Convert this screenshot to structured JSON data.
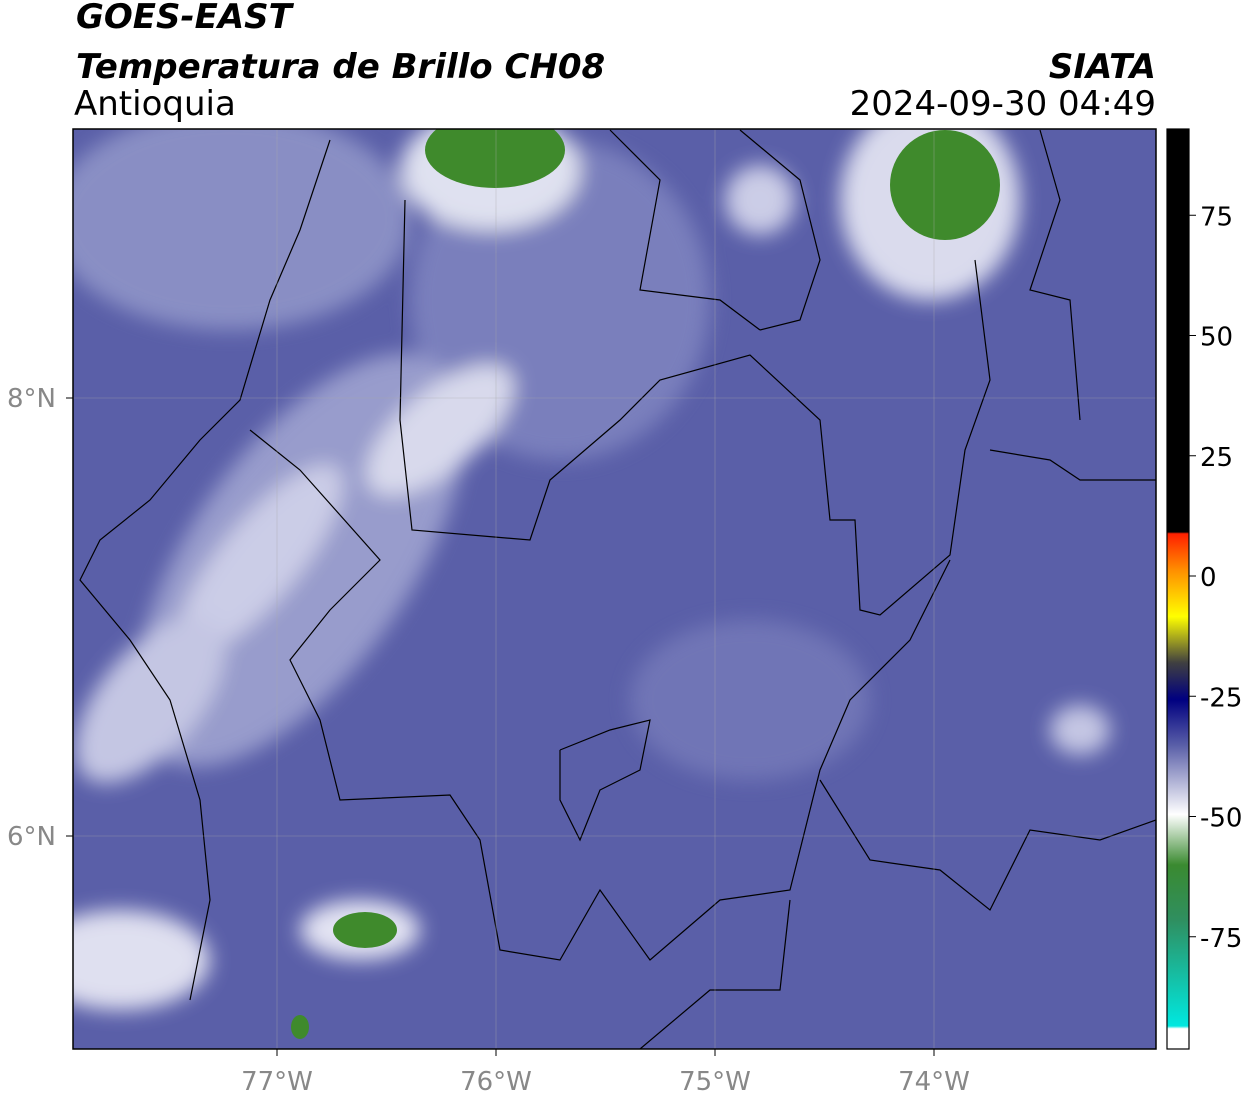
{
  "header": {
    "title": "GOES-EAST",
    "subtitle": "Temperatura de Brillo CH08",
    "region": "Antioquia",
    "source": "SIATA",
    "datetime": "2024-09-30 04:49"
  },
  "map": {
    "lon_labels": [
      "77°W",
      "76°W",
      "75°W",
      "74°W"
    ],
    "lat_labels": [
      "8°N",
      "6°N"
    ]
  },
  "colorbar": {
    "ticks": [
      75,
      50,
      25,
      0,
      -25,
      -50,
      -75
    ]
  }
}
